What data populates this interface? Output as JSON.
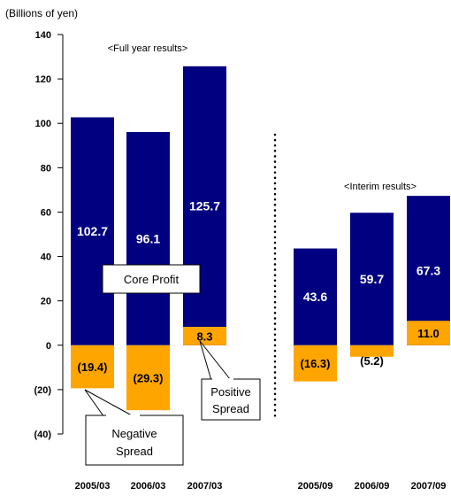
{
  "chart_data": {
    "type": "bar",
    "unit_label": "(Billions of yen)",
    "ylim": [
      -40,
      140
    ],
    "yticks": [
      140,
      120,
      100,
      80,
      60,
      40,
      20,
      0,
      -20,
      -40
    ],
    "ytick_labels": [
      "140",
      "120",
      "100",
      "80",
      "60",
      "40",
      "20",
      "0",
      "(20)",
      "(40)"
    ],
    "categories": [
      "2005/03",
      "2006/03",
      "2007/03",
      "2005/09",
      "2006/09",
      "2007/09"
    ],
    "series": [
      {
        "name": "Core Profit",
        "color": "#000080",
        "values": [
          102.7,
          96.1,
          125.7,
          43.6,
          59.7,
          67.3
        ],
        "labels": [
          "102.7",
          "96.1",
          "125.7",
          "43.6",
          "59.7",
          "67.3"
        ]
      },
      {
        "color": "#FFA500",
        "values": [
          -19.4,
          -29.3,
          8.3,
          -16.3,
          -5.2,
          11.0
        ],
        "labels": [
          "(19.4)",
          "(29.3)",
          "8.3",
          "(16.3)",
          "(5.2)",
          "11.0"
        ]
      }
    ],
    "group_labels": [
      "<Full year results>",
      "<Interim results>"
    ],
    "callouts": {
      "core_profit": "Core Profit",
      "positive_spread": [
        "Positive",
        "Spread"
      ],
      "negative_spread": [
        "Negative",
        "Spread"
      ]
    }
  }
}
